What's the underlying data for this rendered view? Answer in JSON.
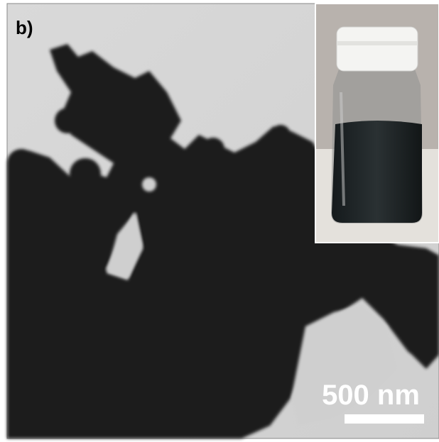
{
  "panel_label": "b)",
  "scale_bar": {
    "label": "500 nm"
  }
}
